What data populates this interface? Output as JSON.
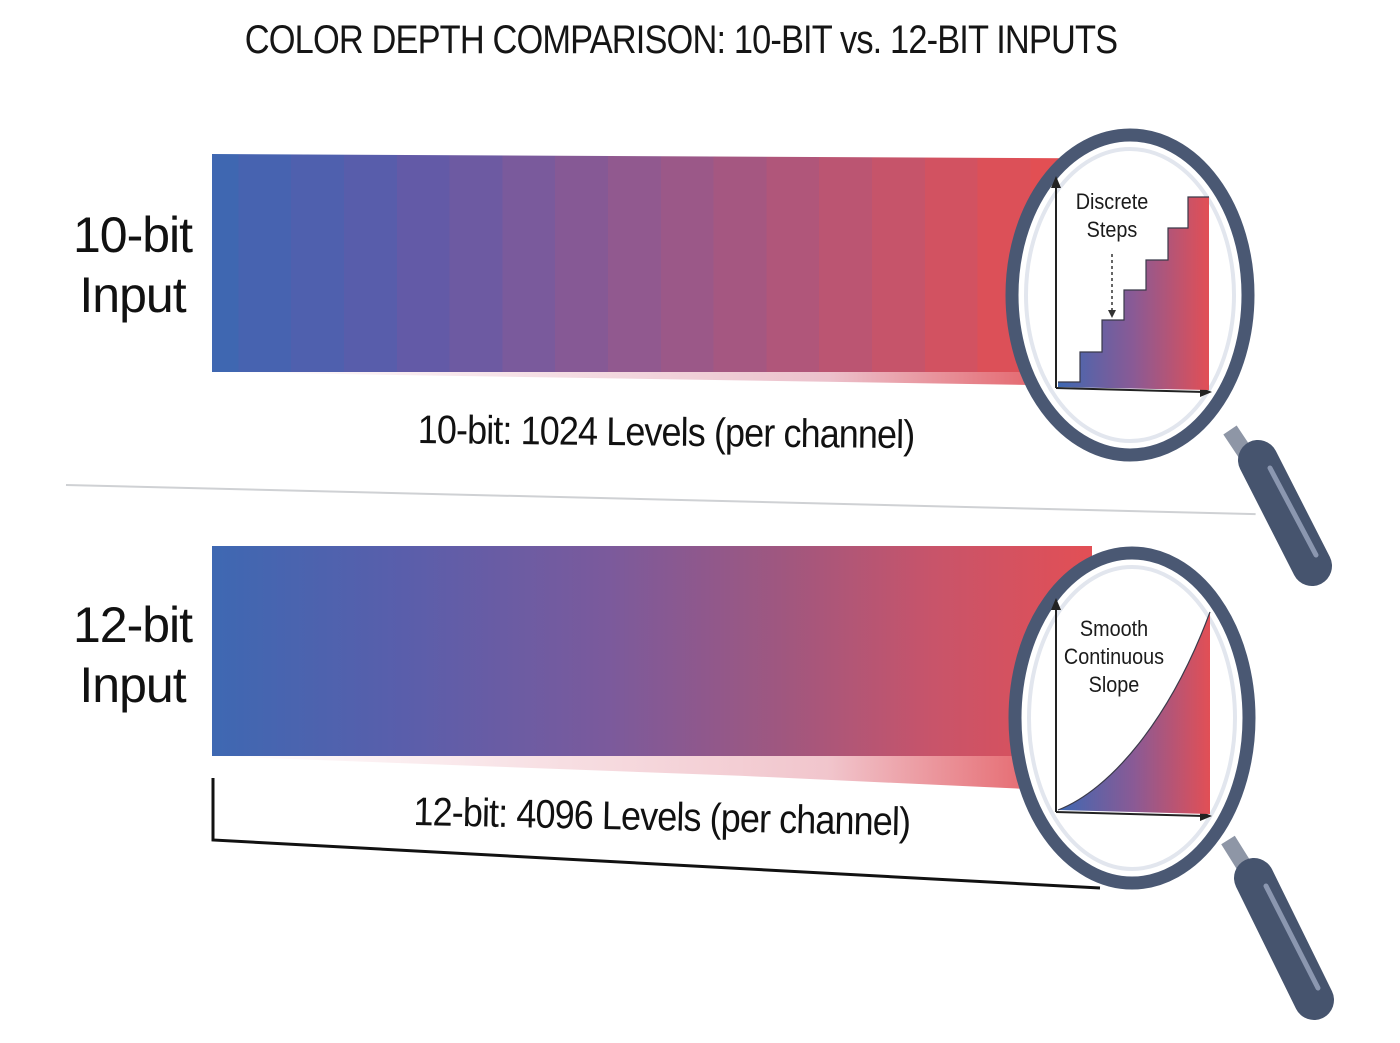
{
  "title": "COLOR DEPTH COMPARISON: 10-BIT vs. 12-BIT INPUTS",
  "rows": [
    {
      "label_line1": "10-bit",
      "label_line2": "Input",
      "caption": "10-bit: 1024 Levels (per channel)",
      "lens_label_line1": "Discrete",
      "lens_label_line2": "Steps"
    },
    {
      "label_line1": "12-bit",
      "label_line2": "Input",
      "caption": "12-bit: 4096 Levels (per channel)",
      "lens_label_line1": "Smooth",
      "lens_label_line2": "Continuous",
      "lens_label_line3": "Slope"
    }
  ],
  "colors": {
    "gradient_start": "#3e68b2",
    "gradient_mid": "#7b5a9c",
    "gradient_end": "#e24f55",
    "magnifier_frame": "#4a5873",
    "divider": "#cfd1d4"
  }
}
